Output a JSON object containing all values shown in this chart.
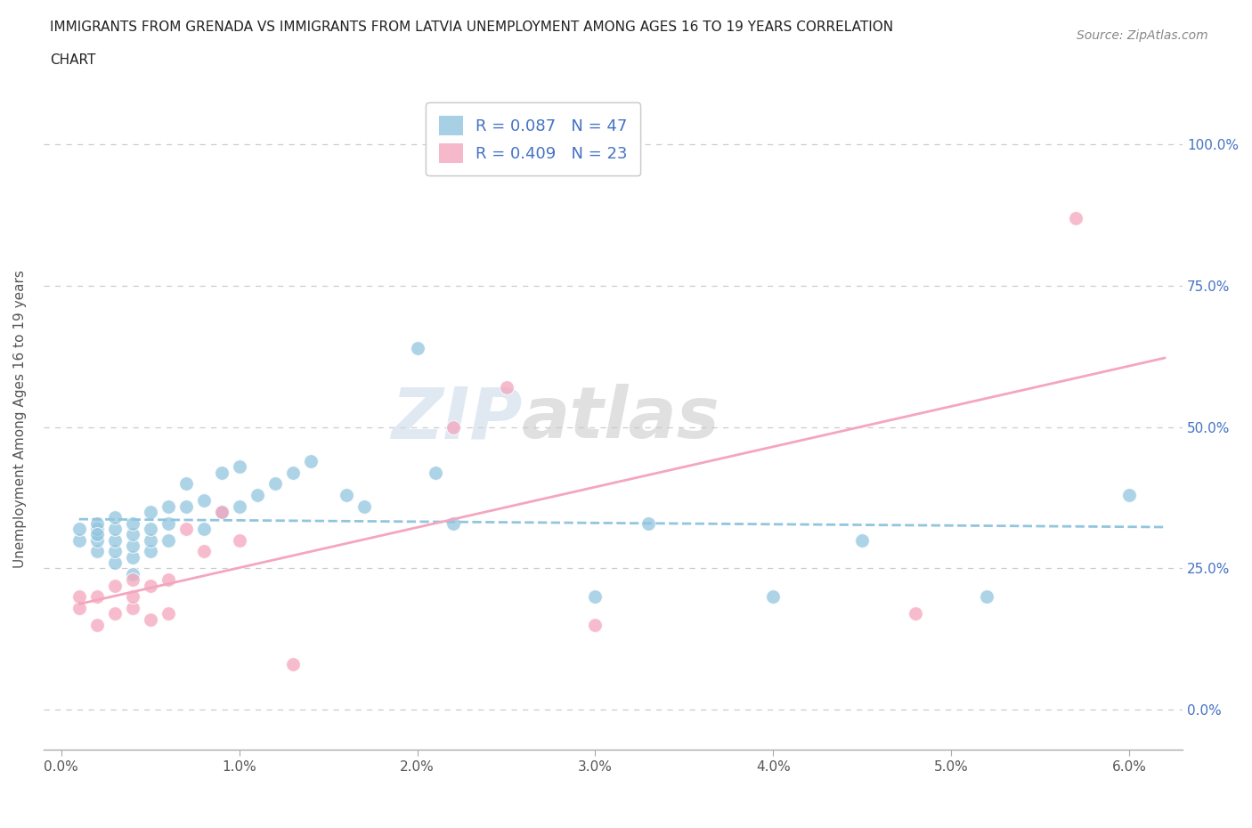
{
  "title_line1": "IMMIGRANTS FROM GRENADA VS IMMIGRANTS FROM LATVIA UNEMPLOYMENT AMONG AGES 16 TO 19 YEARS CORRELATION",
  "title_line2": "CHART",
  "source": "Source: ZipAtlas.com",
  "xlabel_ticks": [
    "0.0%",
    "1.0%",
    "2.0%",
    "3.0%",
    "4.0%",
    "5.0%",
    "6.0%"
  ],
  "ylabel_ticks": [
    "0.0%",
    "25.0%",
    "50.0%",
    "75.0%",
    "100.0%"
  ],
  "x_tick_vals": [
    0.0,
    0.01,
    0.02,
    0.03,
    0.04,
    0.05,
    0.06
  ],
  "y_tick_vals": [
    0.0,
    0.25,
    0.5,
    0.75,
    1.0
  ],
  "xlim": [
    -0.001,
    0.063
  ],
  "ylim": [
    -0.07,
    1.1
  ],
  "ylabel": "Unemployment Among Ages 16 to 19 years",
  "watermark_1": "ZIP",
  "watermark_2": "atlas",
  "legend_grenada_R": "0.087",
  "legend_grenada_N": "47",
  "legend_latvia_R": "0.409",
  "legend_latvia_N": "23",
  "grenada_color": "#92c5de",
  "latvia_color": "#f4a6be",
  "trendline_grenada_color": "#92c5de",
  "trendline_latvia_color": "#f4a6be",
  "grenada_scatter_x": [
    0.001,
    0.001,
    0.002,
    0.002,
    0.002,
    0.002,
    0.002,
    0.003,
    0.003,
    0.003,
    0.003,
    0.003,
    0.004,
    0.004,
    0.004,
    0.004,
    0.004,
    0.005,
    0.005,
    0.005,
    0.005,
    0.006,
    0.006,
    0.006,
    0.007,
    0.007,
    0.008,
    0.008,
    0.009,
    0.009,
    0.01,
    0.01,
    0.011,
    0.012,
    0.013,
    0.014,
    0.016,
    0.017,
    0.02,
    0.021,
    0.022,
    0.03,
    0.033,
    0.04,
    0.045,
    0.052,
    0.06
  ],
  "grenada_scatter_y": [
    0.3,
    0.32,
    0.28,
    0.3,
    0.32,
    0.33,
    0.31,
    0.26,
    0.28,
    0.3,
    0.32,
    0.34,
    0.24,
    0.27,
    0.29,
    0.31,
    0.33,
    0.28,
    0.3,
    0.32,
    0.35,
    0.3,
    0.33,
    0.36,
    0.36,
    0.4,
    0.32,
    0.37,
    0.35,
    0.42,
    0.36,
    0.43,
    0.38,
    0.4,
    0.42,
    0.44,
    0.38,
    0.36,
    0.64,
    0.42,
    0.33,
    0.2,
    0.33,
    0.2,
    0.3,
    0.2,
    0.38
  ],
  "latvia_scatter_x": [
    0.001,
    0.001,
    0.002,
    0.002,
    0.003,
    0.003,
    0.004,
    0.004,
    0.004,
    0.005,
    0.005,
    0.006,
    0.006,
    0.007,
    0.008,
    0.009,
    0.01,
    0.013,
    0.022,
    0.025,
    0.03,
    0.048,
    0.057
  ],
  "latvia_scatter_y": [
    0.18,
    0.2,
    0.15,
    0.2,
    0.17,
    0.22,
    0.18,
    0.2,
    0.23,
    0.16,
    0.22,
    0.17,
    0.23,
    0.32,
    0.28,
    0.35,
    0.3,
    0.08,
    0.5,
    0.57,
    0.15,
    0.17,
    0.87
  ],
  "grid_color": "#cccccc",
  "background_color": "#ffffff"
}
